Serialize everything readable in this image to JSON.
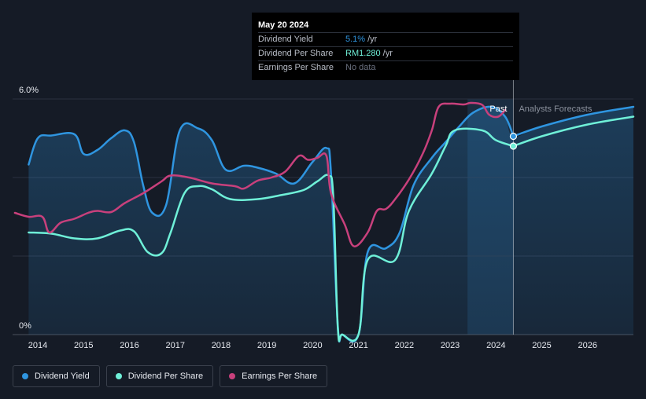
{
  "colors": {
    "background": "#151b26",
    "dividend_yield": "#2f95e0",
    "dividend_per_share": "#6ff0d8",
    "earnings_per_share": "#c8407c",
    "grid": "#2b3140",
    "past_label": "#ffffff",
    "forecast_label": "#8a909c"
  },
  "tooltip": {
    "date": "May 20 2024",
    "rows": [
      {
        "label": "Dividend Yield",
        "value": "5.1%",
        "unit": "/yr"
      },
      {
        "label": "Dividend Per Share",
        "value": "RM1.280",
        "unit": "/yr"
      },
      {
        "label": "Earnings Per Share",
        "value": "No data",
        "unit": ""
      }
    ]
  },
  "legend": {
    "items": [
      {
        "label": "Dividend Yield",
        "color": "#2f95e0"
      },
      {
        "label": "Dividend Per Share",
        "color": "#6ff0d8"
      },
      {
        "label": "Earnings Per Share",
        "color": "#c8407c"
      }
    ]
  },
  "chart_data": {
    "type": "line",
    "title": "",
    "xlabel": "",
    "ylabel": "",
    "xlim": [
      2013.45,
      2027.0
    ],
    "ylim": [
      0,
      6.0
    ],
    "y_tick_labels": [
      "6.0%",
      "0%"
    ],
    "x_ticks": [
      2014,
      2015,
      2016,
      2017,
      2018,
      2019,
      2020,
      2021,
      2022,
      2023,
      2024,
      2025,
      2026
    ],
    "x_tick_labels": [
      "2014",
      "2015",
      "2016",
      "2017",
      "2018",
      "2019",
      "2020",
      "2021",
      "2022",
      "2023",
      "2024",
      "2025",
      "2026"
    ],
    "past_label": "Past",
    "forecast_label": "Analysts Forecasts",
    "past_end_x": 2024.38,
    "forecast_shade_start_x": 2023.38,
    "tooltip_x": 2024.38,
    "series": [
      {
        "name": "Dividend Yield",
        "key": "dividend_yield",
        "unit": "%",
        "past": [
          [
            2013.8,
            4.33
          ],
          [
            2014.0,
            5.0
          ],
          [
            2014.3,
            5.07
          ],
          [
            2014.8,
            5.1
          ],
          [
            2015.0,
            4.6
          ],
          [
            2015.3,
            4.7
          ],
          [
            2015.6,
            5.0
          ],
          [
            2015.9,
            5.2
          ],
          [
            2016.1,
            4.9
          ],
          [
            2016.3,
            3.8
          ],
          [
            2016.5,
            3.1
          ],
          [
            2016.8,
            3.3
          ],
          [
            2017.1,
            5.2
          ],
          [
            2017.5,
            5.25
          ],
          [
            2017.8,
            4.95
          ],
          [
            2018.1,
            4.2
          ],
          [
            2018.5,
            4.3
          ],
          [
            2018.8,
            4.25
          ],
          [
            2019.2,
            4.1
          ],
          [
            2019.6,
            3.85
          ],
          [
            2020.0,
            4.4
          ],
          [
            2020.3,
            4.75
          ],
          [
            2020.4,
            4.1
          ],
          [
            2020.55,
            0.2
          ],
          [
            2020.65,
            0.0
          ],
          [
            2021.0,
            0.0
          ],
          [
            2021.2,
            2.1
          ],
          [
            2021.6,
            2.2
          ],
          [
            2021.9,
            2.6
          ],
          [
            2022.2,
            3.8
          ],
          [
            2022.6,
            4.5
          ],
          [
            2022.9,
            4.9
          ],
          [
            2023.2,
            5.3
          ],
          [
            2023.5,
            5.65
          ],
          [
            2023.9,
            5.8
          ],
          [
            2024.2,
            5.55
          ],
          [
            2024.38,
            5.05
          ]
        ],
        "forecast": [
          [
            2024.38,
            5.05
          ],
          [
            2025.0,
            5.3
          ],
          [
            2026.0,
            5.6
          ],
          [
            2027.0,
            5.8
          ]
        ]
      },
      {
        "name": "Dividend Per Share",
        "key": "dividend_per_share",
        "unit": "",
        "past": [
          [
            2013.8,
            2.6
          ],
          [
            2014.3,
            2.57
          ],
          [
            2014.8,
            2.45
          ],
          [
            2015.3,
            2.45
          ],
          [
            2015.8,
            2.65
          ],
          [
            2016.1,
            2.63
          ],
          [
            2016.4,
            2.1
          ],
          [
            2016.7,
            2.07
          ],
          [
            2016.9,
            2.6
          ],
          [
            2017.2,
            3.6
          ],
          [
            2017.5,
            3.78
          ],
          [
            2017.8,
            3.7
          ],
          [
            2018.2,
            3.45
          ],
          [
            2018.8,
            3.45
          ],
          [
            2019.3,
            3.55
          ],
          [
            2019.8,
            3.68
          ],
          [
            2020.1,
            3.9
          ],
          [
            2020.35,
            4.05
          ],
          [
            2020.45,
            3.5
          ],
          [
            2020.55,
            0.15
          ],
          [
            2020.65,
            0.0
          ],
          [
            2021.0,
            0.0
          ],
          [
            2021.2,
            1.9
          ],
          [
            2021.8,
            1.9
          ],
          [
            2022.1,
            3.15
          ],
          [
            2022.6,
            4.1
          ],
          [
            2022.9,
            4.8
          ],
          [
            2023.1,
            5.2
          ],
          [
            2023.7,
            5.2
          ],
          [
            2024.0,
            4.95
          ],
          [
            2024.38,
            4.8
          ]
        ],
        "forecast": [
          [
            2024.38,
            4.8
          ],
          [
            2025.0,
            5.05
          ],
          [
            2026.0,
            5.35
          ],
          [
            2027.0,
            5.55
          ]
        ]
      },
      {
        "name": "Earnings Per Share",
        "key": "earnings_per_share",
        "unit": "",
        "past": [
          [
            2013.5,
            3.1
          ],
          [
            2013.8,
            3.0
          ],
          [
            2014.1,
            3.0
          ],
          [
            2014.25,
            2.6
          ],
          [
            2014.5,
            2.85
          ],
          [
            2014.8,
            2.95
          ],
          [
            2015.1,
            3.1
          ],
          [
            2015.3,
            3.15
          ],
          [
            2015.6,
            3.12
          ],
          [
            2015.9,
            3.35
          ],
          [
            2016.3,
            3.6
          ],
          [
            2016.7,
            3.9
          ],
          [
            2016.9,
            4.05
          ],
          [
            2017.3,
            4.0
          ],
          [
            2017.8,
            3.85
          ],
          [
            2018.3,
            3.78
          ],
          [
            2018.5,
            3.72
          ],
          [
            2018.8,
            3.92
          ],
          [
            2019.1,
            4.0
          ],
          [
            2019.4,
            4.15
          ],
          [
            2019.7,
            4.55
          ],
          [
            2019.9,
            4.45
          ],
          [
            2020.1,
            4.5
          ],
          [
            2020.3,
            4.55
          ],
          [
            2020.4,
            3.6
          ],
          [
            2020.7,
            2.8
          ],
          [
            2020.9,
            2.25
          ],
          [
            2021.2,
            2.6
          ],
          [
            2021.4,
            3.15
          ],
          [
            2021.6,
            3.2
          ],
          [
            2021.8,
            3.45
          ],
          [
            2022.1,
            3.95
          ],
          [
            2022.4,
            4.6
          ],
          [
            2022.6,
            5.2
          ],
          [
            2022.75,
            5.8
          ],
          [
            2023.0,
            5.88
          ],
          [
            2023.3,
            5.86
          ],
          [
            2023.45,
            5.9
          ],
          [
            2023.7,
            5.85
          ],
          [
            2023.85,
            5.6
          ],
          [
            2024.05,
            5.55
          ],
          [
            2024.2,
            5.72
          ]
        ],
        "forecast": []
      }
    ]
  }
}
